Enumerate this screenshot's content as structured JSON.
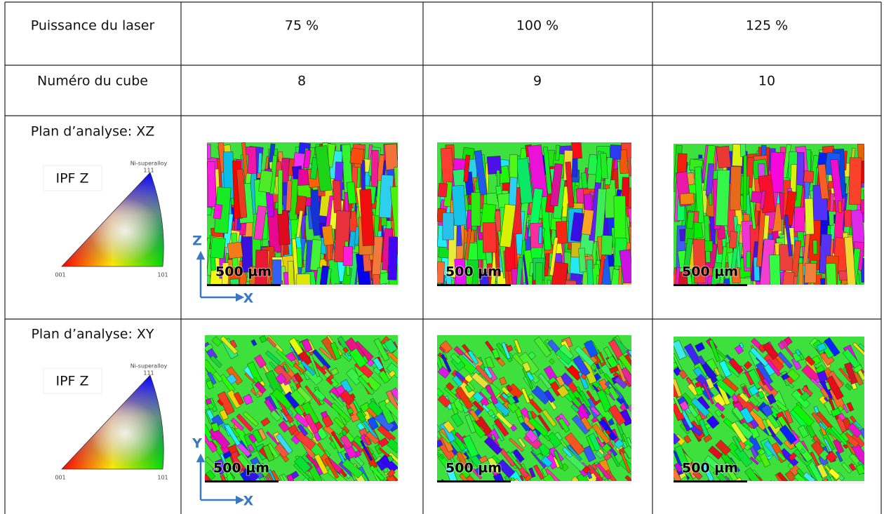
{
  "table": {
    "rows": [
      [
        "Puissance du laser",
        "75 %",
        "100 %",
        "125 %"
      ],
      [
        "Numéro du cube",
        "8",
        "9",
        "10"
      ]
    ]
  },
  "maps": [
    {
      "plane": "Plan d’analyse: XZ",
      "legend": {
        "label": "IPF Z",
        "material": "Ni-superalloy",
        "corners": [
          "111",
          "001",
          "101"
        ]
      },
      "axes": [
        "Z",
        "X"
      ],
      "scale_bars": [
        "500 µm",
        "500 µm",
        "500 µm"
      ]
    },
    {
      "plane": "Plan d’analyse: XY",
      "legend": {
        "label": "IPF Z",
        "material": "Ni-superalloy",
        "corners": [
          "111",
          "001",
          "101"
        ]
      },
      "axes": [
        "Y",
        "X"
      ],
      "scale_bars": [
        "500 µm",
        "500 µm",
        "500 µm"
      ]
    }
  ]
}
